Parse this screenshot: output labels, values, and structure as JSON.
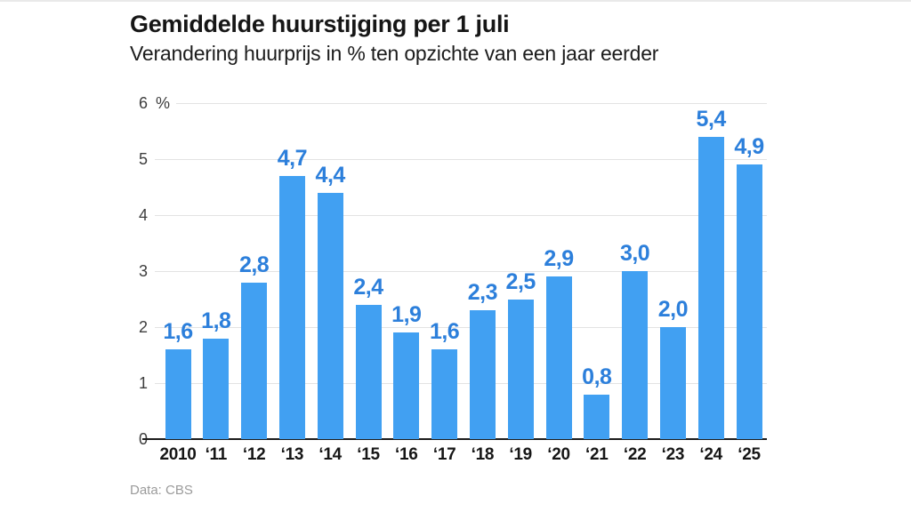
{
  "chart_data": {
    "type": "bar",
    "title": "Gemiddelde huurstijging per 1 juli",
    "subtitle": "Verandering huurprijs in % ten opzichte van een jaar eerder",
    "source": "Data: CBS",
    "categories": [
      "2010",
      "‘11",
      "‘12",
      "‘13",
      "‘14",
      "‘15",
      "‘16",
      "‘17",
      "‘18",
      "‘19",
      "‘20",
      "‘21",
      "‘22",
      "‘23",
      "‘24",
      "‘25"
    ],
    "values": [
      1.6,
      1.8,
      2.8,
      4.7,
      4.4,
      2.4,
      1.9,
      1.6,
      2.3,
      2.5,
      2.9,
      0.8,
      3.0,
      2.0,
      5.4,
      4.9
    ],
    "value_labels": [
      "1,6",
      "1,8",
      "2,8",
      "4,7",
      "4,4",
      "2,4",
      "1,9",
      "1,6",
      "2,3",
      "2,5",
      "2,9",
      "0,8",
      "3,0",
      "2,0",
      "5,4",
      "4,9"
    ],
    "xlabel": "",
    "ylabel": "",
    "y_unit": "%",
    "ylim": [
      0,
      6
    ],
    "yticks": [
      0,
      1,
      2,
      3,
      4,
      5,
      6
    ],
    "grid": true,
    "legend": false,
    "colors": {
      "bar": "#41a0f2",
      "value_label": "#2c7fdb",
      "x_tick_label": "#161616",
      "y_tick_label": "#3d3d3d",
      "gridline": "#e2e2e2",
      "baseline": "#1c1c1c",
      "title": "#161616",
      "subtitle": "#1c1c1c",
      "source": "#9b9b9b"
    }
  }
}
